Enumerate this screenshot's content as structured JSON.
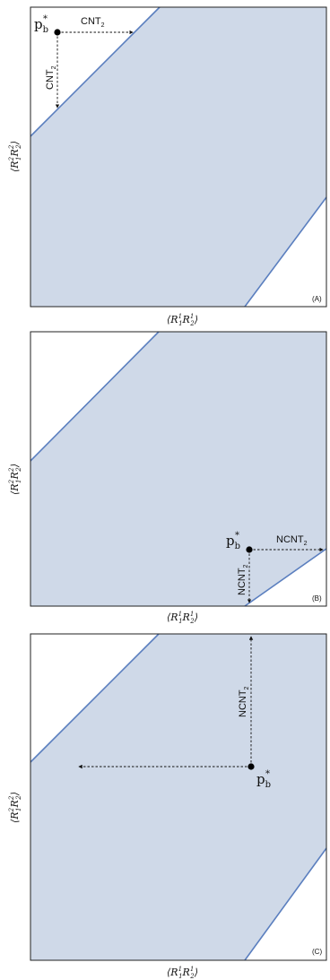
{
  "point_label": "p",
  "point_sub": "b",
  "point_sup": "*",
  "axis_x": {
    "bracket_l": "⟨",
    "var": "R",
    "sup1": "1",
    "sub1": "1",
    "sup2": "1",
    "sub2": "2",
    "bracket_r": "⟩"
  },
  "axis_y": {
    "bracket_l": "⟨",
    "var": "R",
    "sup1": "2",
    "sub1": "1",
    "sup2": "2",
    "sub2": "2",
    "bracket_r": "⟩"
  },
  "panels": [
    {
      "tag": "(A)",
      "h_label": "CNT",
      "v_label": "CNT",
      "label_sub": "2"
    },
    {
      "tag": "(B)",
      "h_label": "NCNT",
      "v_label": "NCNT",
      "label_sub": "2"
    },
    {
      "tag": "(C)",
      "v_label": "NCNT",
      "label_sub": "2"
    }
  ]
}
